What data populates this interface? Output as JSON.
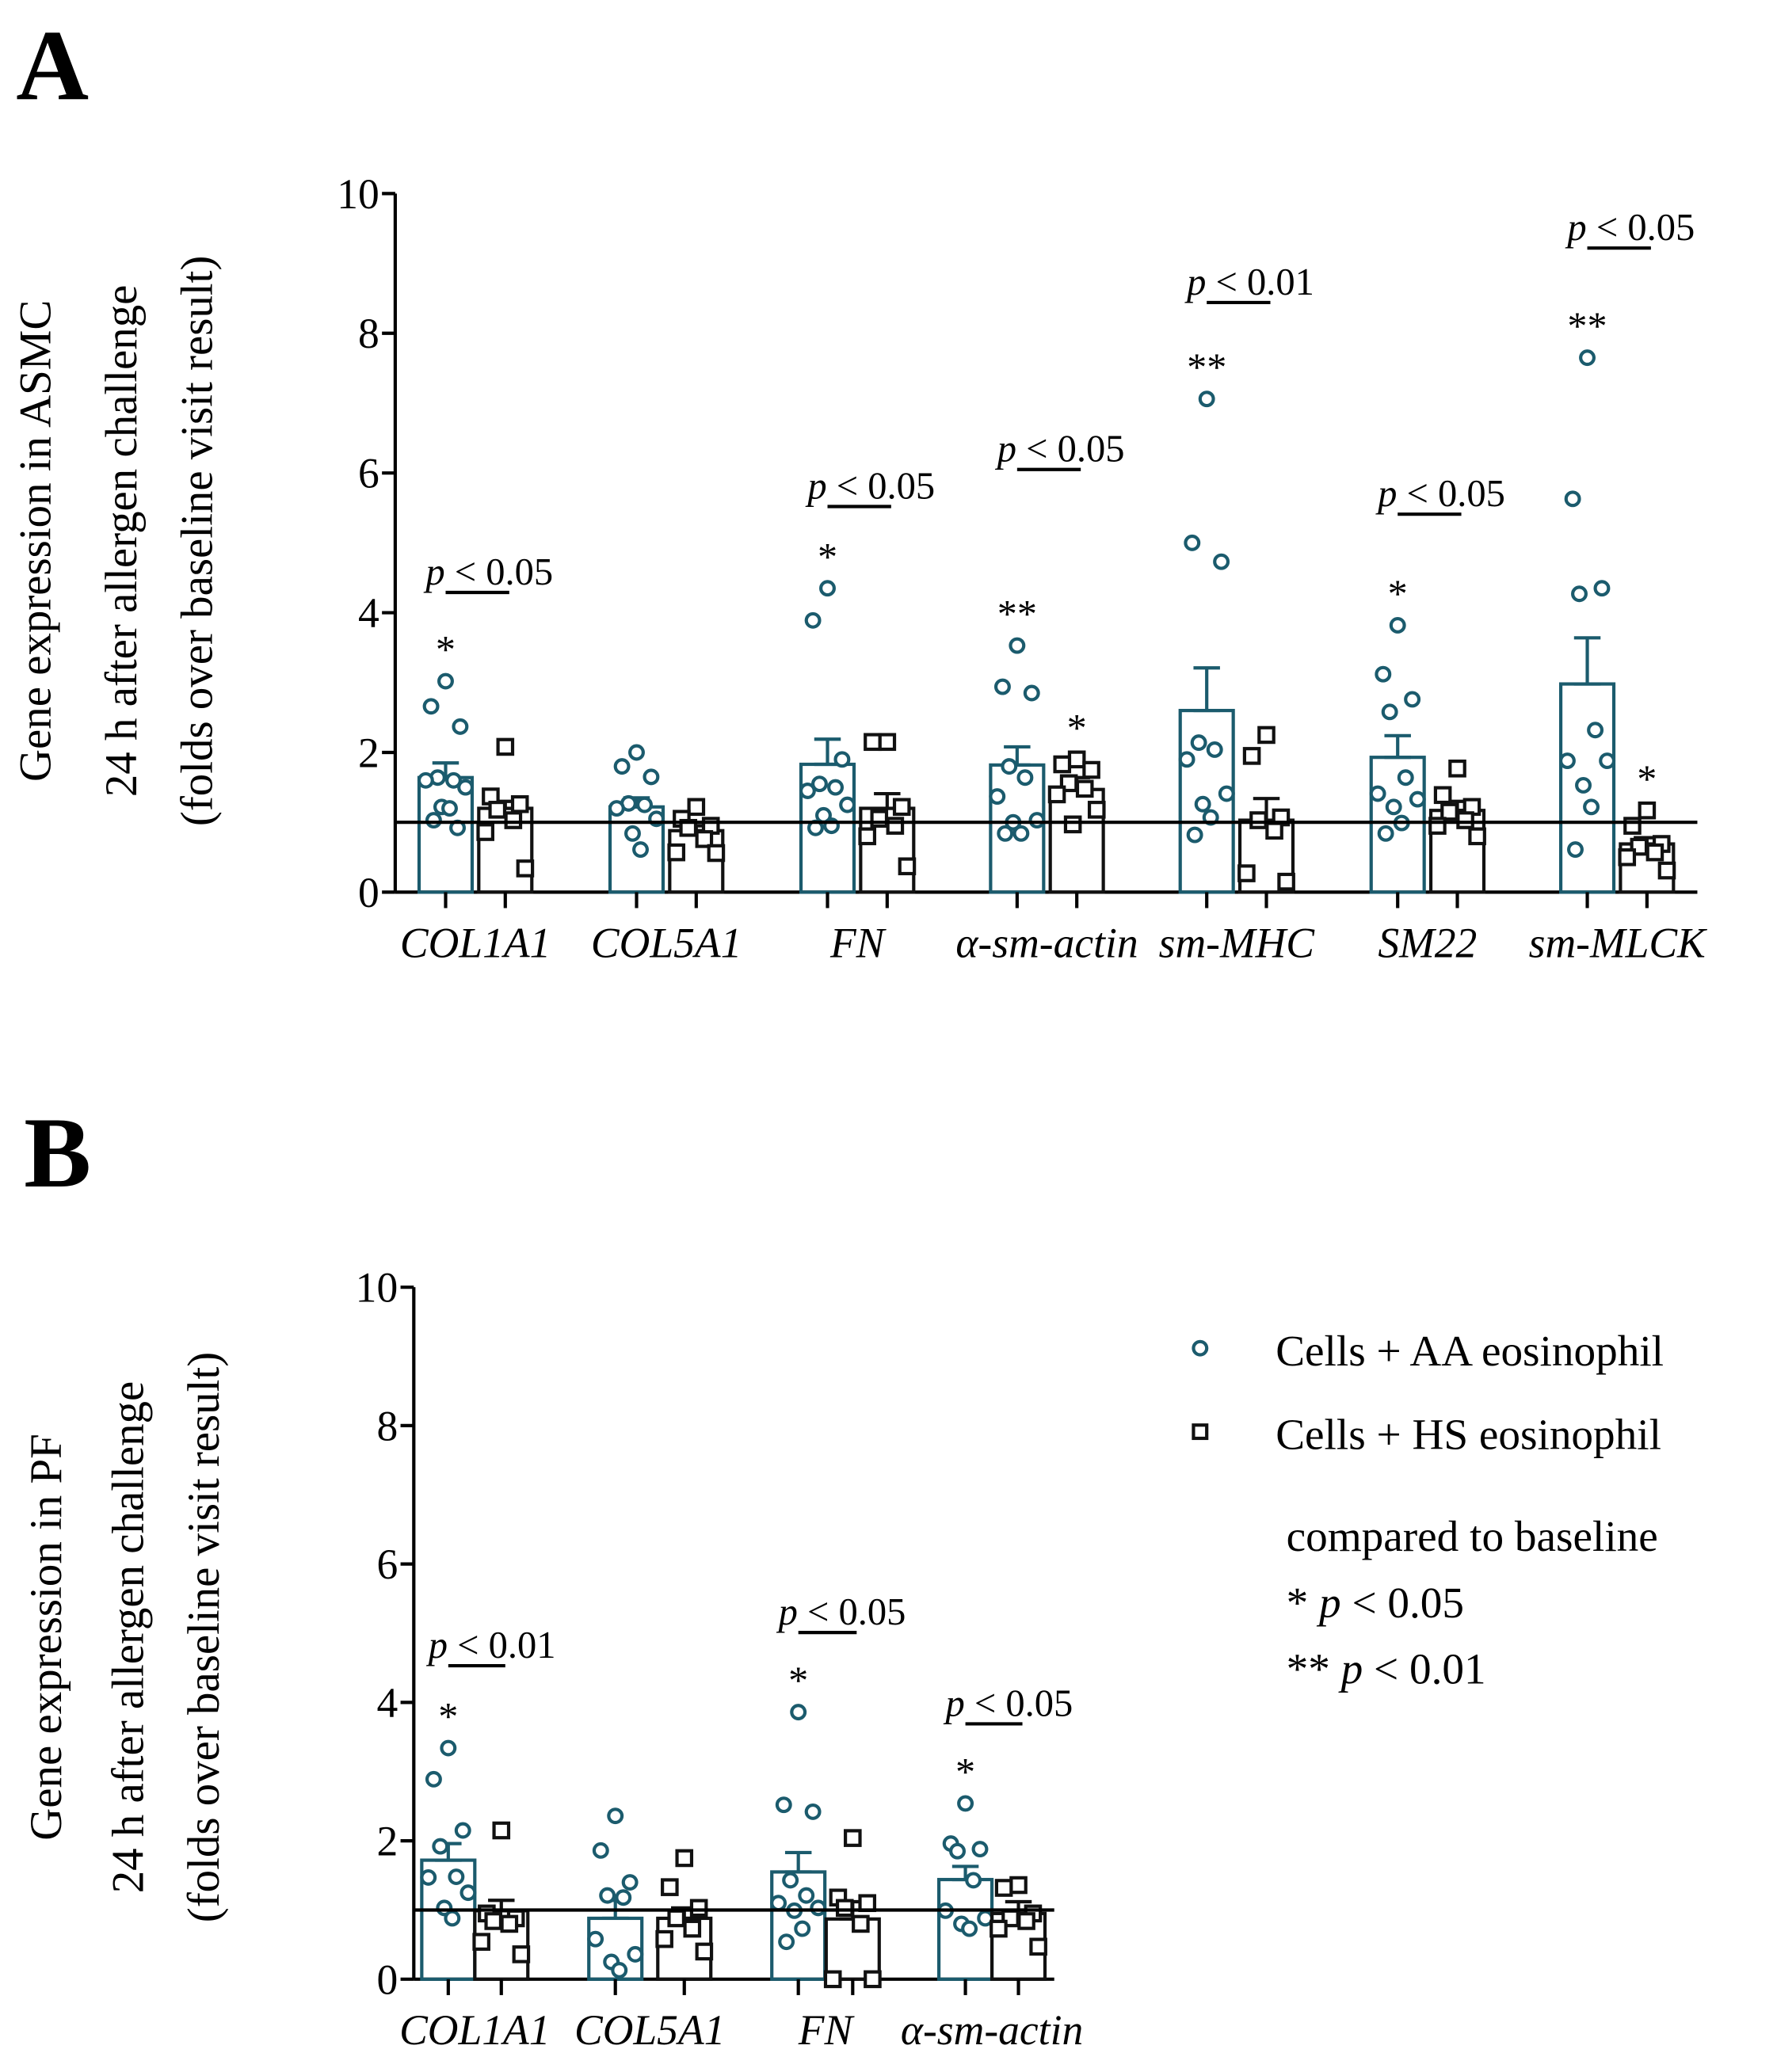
{
  "colors": {
    "aa": "#1b5b6d",
    "hs": "#111111"
  },
  "legend": {
    "aa_label": "Cells + AA eosinophil",
    "hs_label": "Cells + HS eosinophil",
    "note_title": "compared to baseline",
    "note_1_star": "*",
    "note_1_p": "p",
    "note_1_rest": " < 0.05",
    "note_2_star": "**",
    "note_2_p": "p",
    "note_2_rest": " < 0.01"
  },
  "chart_data": [
    {
      "panel_label": "A",
      "type": "bar",
      "ylabel_lines": [
        "Gene expression in ASMC",
        "24 h after allergen challenge",
        "(folds over baseline visit result)"
      ],
      "ylim": [
        0,
        10
      ],
      "yticks": [
        "0",
        "2",
        "4",
        "6",
        "8",
        "10"
      ],
      "reference_line": 1,
      "categories": [
        "COL1A1",
        "COL5A1",
        "FN",
        "α-sm-actin",
        "sm-MHC",
        "SM22",
        "sm-MLCK"
      ],
      "series": [
        {
          "name": "Cells + AA eosinophil",
          "marker": "circle",
          "means": [
            1.64,
            1.22,
            1.83,
            1.82,
            2.6,
            1.93,
            2.98
          ],
          "sem": [
            0.21,
            0.13,
            0.36,
            0.26,
            0.61,
            0.31,
            0.66
          ],
          "points": [
            [
              3.02,
              2.66,
              2.37,
              1.64,
              1.6,
              1.6,
              1.5,
              1.22,
              1.2,
              1.03,
              0.92
            ],
            [
              2.0,
              1.8,
              1.65,
              1.27,
              1.25,
              1.2,
              1.05,
              0.84,
              0.61
            ],
            [
              4.35,
              3.89,
              1.9,
              1.55,
              1.5,
              1.45,
              1.25,
              1.1,
              0.95,
              0.92
            ],
            [
              3.53,
              2.94,
              2.85,
              1.8,
              1.64,
              1.37,
              1.03,
              1.0,
              0.84,
              0.84
            ],
            [
              7.06,
              5.0,
              4.73,
              2.14,
              2.04,
              1.9,
              1.41,
              1.26,
              1.07,
              0.82
            ],
            [
              3.82,
              3.12,
              2.76,
              2.58,
              1.64,
              1.41,
              1.33,
              1.22,
              0.99,
              0.84
            ],
            [
              7.65,
              5.63,
              4.35,
              4.27,
              2.32,
              1.88,
              1.88,
              1.53,
              1.22,
              0.61
            ]
          ],
          "stars": [
            "*",
            "",
            "*",
            "**",
            "**",
            "*",
            "**"
          ]
        },
        {
          "name": "Cells + HS eosinophil",
          "marker": "square",
          "means": [
            1.2,
            0.88,
            1.2,
            1.47,
            1.03,
            1.17,
            0.69
          ],
          "sem": [
            0.1,
            0.07,
            0.21,
            0.17,
            0.31,
            0.13,
            0.09
          ],
          "points": [
            [
              2.08,
              1.37,
              1.26,
              1.18,
              1.03,
              0.86,
              0.34
            ],
            [
              1.22,
              1.05,
              0.95,
              0.92,
              0.76,
              0.57,
              0.56
            ],
            [
              2.15,
              2.15,
              1.22,
              1.05,
              0.95,
              0.8,
              0.37
            ],
            [
              1.9,
              1.83,
              1.75,
              1.56,
              1.48,
              1.4,
              1.18,
              0.97
            ],
            [
              2.25,
              1.95,
              1.07,
              1.03,
              0.88,
              0.27,
              0.15
            ],
            [
              1.77,
              1.39,
              1.22,
              1.15,
              1.03,
              0.95,
              0.8
            ],
            [
              1.17,
              0.95,
              0.69,
              0.65,
              0.57,
              0.5,
              0.31
            ]
          ],
          "stars": [
            "",
            "",
            "",
            "*",
            "",
            "",
            "*"
          ]
        }
      ],
      "comparisons": [
        {
          "category": "COL1A1",
          "label_p": "p",
          "label_rest": " < 0.05",
          "y": 4.29
        },
        {
          "category": "FN",
          "label_p": "p",
          "label_rest": " < 0.05",
          "y": 5.52
        },
        {
          "category": "α-sm-actin",
          "label_p": "p",
          "label_rest": " < 0.05",
          "y": 6.05
        },
        {
          "category": "sm-MHC",
          "label_p": "p",
          "label_rest": " < 0.01",
          "y": 8.44
        },
        {
          "category": "SM22",
          "label_p": "p",
          "label_rest": " < 0.05",
          "y": 5.41
        },
        {
          "category": "sm-MLCK",
          "label_p": "p",
          "label_rest": " < 0.05",
          "y": 9.22
        }
      ]
    },
    {
      "panel_label": "B",
      "type": "bar",
      "ylabel_lines": [
        "Gene expression in PF",
        "24 h after allergen challenge",
        "(folds over baseline visit result)"
      ],
      "ylim": [
        0,
        10
      ],
      "yticks": [
        "0",
        "2",
        "4",
        "6",
        "8",
        "10"
      ],
      "reference_line": 1,
      "categories": [
        "COL1A1",
        "COL5A1",
        "FN",
        "α-sm-actin"
      ],
      "series": [
        {
          "name": "Cells + AA eosinophil",
          "marker": "circle",
          "means": [
            1.72,
            0.88,
            1.55,
            1.44
          ],
          "sem": [
            0.24,
            0.26,
            0.28,
            0.19
          ],
          "points": [
            [
              3.34,
              2.89,
              2.15,
              1.92,
              1.48,
              1.47,
              1.25,
              1.03,
              0.88
            ],
            [
              2.36,
              1.86,
              1.4,
              1.21,
              1.18,
              0.58,
              0.36,
              0.25,
              0.13
            ],
            [
              3.86,
              2.52,
              2.42,
              1.43,
              1.21,
              1.1,
              1.03,
              0.99,
              0.73,
              0.54
            ],
            [
              2.54,
              1.96,
              1.88,
              1.85,
              1.43,
              0.99,
              0.88,
              0.8,
              0.73
            ]
          ],
          "stars": [
            "*",
            "",
            "*",
            "*"
          ]
        },
        {
          "name": "Cells + HS eosinophil",
          "marker": "square",
          "means": [
            0.99,
            0.88,
            0.87,
            0.95
          ],
          "sem": [
            0.15,
            0.15,
            0.25,
            0.17
          ],
          "points": [
            [
              2.15,
              0.95,
              0.88,
              0.84,
              0.8,
              0.54,
              0.36
            ],
            [
              1.75,
              1.33,
              1.03,
              0.88,
              0.73,
              0.58,
              0.4
            ],
            [
              2.04,
              1.18,
              1.1,
              1.03,
              0.8,
              0.0,
              0.0
            ],
            [
              1.36,
              1.32,
              0.95,
              0.88,
              0.84,
              0.73,
              0.47
            ]
          ],
          "stars": [
            "",
            "",
            "",
            ""
          ]
        }
      ],
      "comparisons": [
        {
          "category": "COL1A1",
          "label_p": "p",
          "label_rest": " < 0.01",
          "y": 4.53
        },
        {
          "category": "FN",
          "label_p": "p",
          "label_rest": " < 0.05",
          "y": 5.01
        },
        {
          "category": "α-sm-actin",
          "label_p": "p",
          "label_rest": " < 0.05",
          "y": 3.69
        }
      ]
    }
  ]
}
